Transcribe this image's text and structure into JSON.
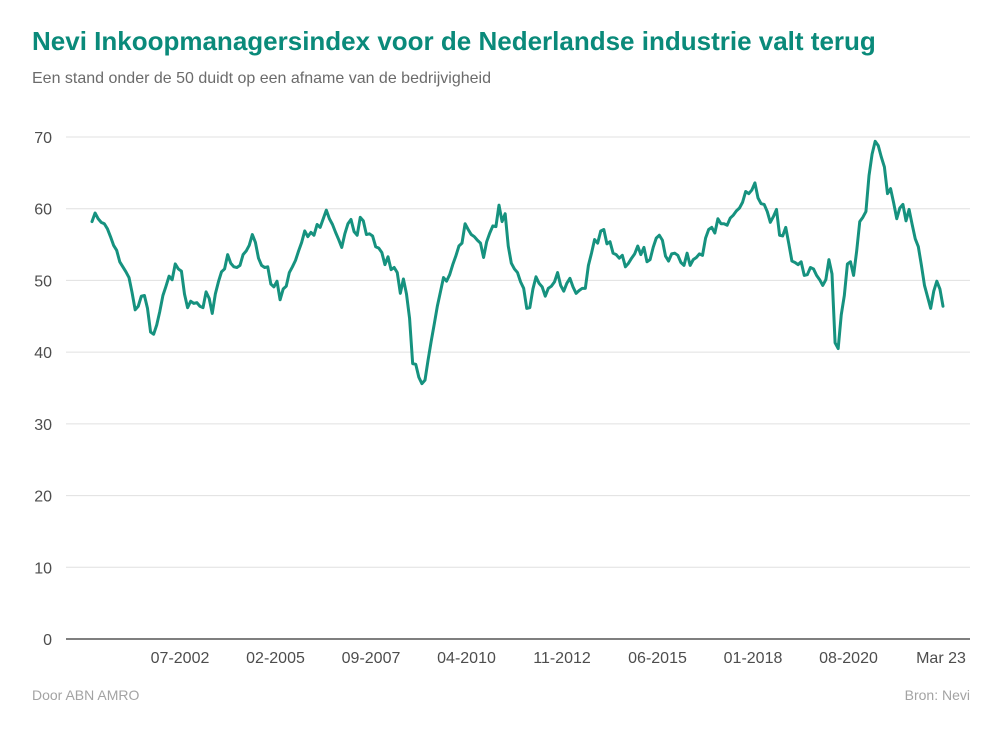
{
  "title": "Nevi Inkoopmanagersindex voor de Nederlandse industrie valt terug",
  "subtitle": "Een stand onder de 50 duidt op een afname van de bedrijvigheid",
  "footer_left": "Door ABN AMRO",
  "footer_right": "Bron: Nevi",
  "colors": {
    "line": "#16927f",
    "title": "#0a8a7a",
    "grid": "#e0e0e0",
    "axis": "#333333"
  },
  "chart_data": {
    "type": "line",
    "title": "Nevi Inkoopmanagersindex voor de Nederlandse industrie valt terug",
    "xlabel": "",
    "ylabel": "",
    "ylim": [
      0,
      70
    ],
    "yticks": [
      0,
      10,
      20,
      30,
      40,
      50,
      60,
      70
    ],
    "xticks": [
      "07-2002",
      "02-2005",
      "09-2007",
      "04-2010",
      "11-2012",
      "06-2015",
      "01-2018",
      "08-2020",
      "Mar 23"
    ],
    "grid": true,
    "legend": "none",
    "series": [
      {
        "x_start": "2000-01",
        "x_end": "2023-03",
        "values": [
          58.2,
          59.4,
          58.6,
          58.1,
          57.9,
          57.2,
          56.1,
          54.9,
          54.2,
          52.6,
          51.9,
          51.2,
          50.4,
          48.3,
          45.9,
          46.4,
          47.8,
          47.9,
          46.1,
          42.8,
          42.5,
          43.8,
          45.7,
          47.9,
          49.2,
          50.6,
          50.1,
          52.3,
          51.6,
          51.3,
          48.1,
          46.2,
          47.1,
          46.8,
          46.9,
          46.4,
          46.2,
          48.4,
          47.5,
          45.4,
          48.1,
          49.8,
          51.2,
          51.6,
          53.6,
          52.4,
          51.9,
          51.8,
          52.1,
          53.6,
          54.1,
          54.9,
          56.4,
          55.3,
          53.1,
          52.1,
          51.8,
          51.9,
          49.5,
          49.1,
          49.9,
          47.3,
          48.8,
          49.2,
          51.1,
          51.9,
          52.8,
          54.1,
          55.3,
          56.9,
          56.1,
          56.7,
          56.3,
          57.8,
          57.4,
          58.6,
          59.8,
          58.6,
          57.8,
          56.7,
          55.7,
          54.6,
          56.5,
          57.9,
          58.5,
          56.8,
          56.3,
          58.8,
          58.3,
          56.4,
          56.5,
          56.2,
          54.7,
          54.5,
          53.9,
          52.2,
          53.3,
          51.5,
          51.8,
          51.1,
          48.2,
          50.2,
          48.1,
          44.7,
          38.4,
          38.3,
          36.5,
          35.6,
          36.1,
          38.9,
          41.5,
          43.9,
          46.4,
          48.4,
          50.4,
          49.9,
          50.8,
          52.2,
          53.4,
          54.8,
          55.2,
          57.9,
          57.1,
          56.4,
          56.1,
          55.6,
          55.2,
          53.2,
          55.4,
          56.6,
          57.6,
          57.5,
          60.5,
          58.2,
          59.3,
          54.8,
          52.4,
          51.6,
          51.1,
          49.8,
          48.9,
          46.1,
          46.2,
          48.8,
          50.5,
          49.6,
          49.1,
          47.8,
          48.9,
          49.2,
          49.8,
          51.1,
          49.3,
          48.5,
          49.6,
          50.3,
          49.1,
          48.2,
          48.6,
          48.9,
          48.9,
          52.1,
          53.8,
          55.7,
          55.2,
          56.9,
          57.1,
          55.1,
          55.4,
          53.8,
          53.6,
          53.1,
          53.5,
          51.9,
          52.4,
          53.1,
          53.7,
          54.8,
          53.6,
          54.6,
          52.6,
          52.9,
          54.6,
          55.9,
          56.3,
          55.6,
          53.4,
          52.7,
          53.7,
          53.8,
          53.5,
          52.5,
          52.1,
          53.8,
          52.1,
          52.9,
          53.2,
          53.7,
          53.5,
          55.9,
          57.1,
          57.4,
          56.6,
          58.6,
          57.9,
          57.9,
          57.7,
          58.7,
          59.1,
          59.7,
          60.1,
          60.9,
          62.4,
          62.1,
          62.6,
          63.6,
          61.5,
          60.7,
          60.6,
          59.6,
          58.1,
          58.9,
          59.9,
          56.3,
          56.2,
          57.4,
          55.1,
          52.7,
          52.5,
          52.2,
          52.6,
          50.7,
          50.8,
          51.8,
          51.6,
          50.7,
          50.1,
          49.3,
          50.1,
          52.9,
          50.9,
          41.3,
          40.5,
          45.2,
          47.9,
          52.3,
          52.6,
          50.7,
          54.1,
          58.2,
          58.8,
          59.6,
          64.6,
          67.6,
          69.4,
          68.8,
          67.2,
          65.8,
          62.1,
          62.8,
          60.8,
          58.6,
          60.1,
          60.6,
          58.3,
          59.9,
          57.8,
          55.8,
          54.7,
          52.1,
          49.3,
          47.7,
          46.1,
          48.5,
          49.9,
          48.8,
          46.4
        ]
      }
    ]
  }
}
